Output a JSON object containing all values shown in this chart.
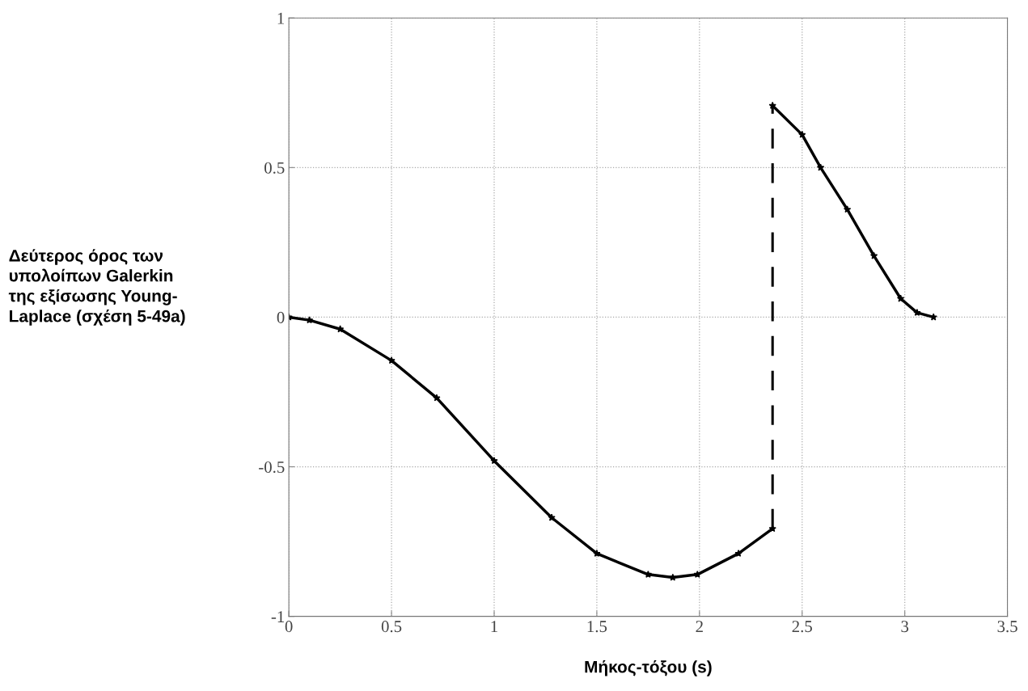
{
  "chart_data": {
    "type": "line",
    "xlabel": "Μήκος-τόξου (s)",
    "ylabel": "Δεύτερος όρος των\nυπολοίπων Galerkin\nτης εξίσωσης Young-\nLaplace (σχέση 5-49a)",
    "series": [
      {
        "color": "#000000",
        "marker": "star",
        "line_style": "solid",
        "x": [
          0,
          0.1,
          0.25,
          0.5,
          0.72,
          1.0,
          1.28,
          1.5,
          1.75,
          1.87,
          1.99,
          2.19,
          2.356
        ],
        "values": [
          0,
          -0.01,
          -0.04,
          -0.145,
          -0.27,
          -0.48,
          -0.67,
          -0.79,
          -0.86,
          -0.87,
          -0.86,
          -0.79,
          -0.707
        ]
      },
      {
        "color": "#000000",
        "line_style": "dashed",
        "x": [
          2.356,
          2.356
        ],
        "values": [
          -0.707,
          0.707
        ]
      },
      {
        "color": "#000000",
        "marker": "star",
        "line_style": "solid",
        "x": [
          2.356,
          2.5,
          2.59,
          2.72,
          2.85,
          2.98,
          3.06,
          3.14
        ],
        "values": [
          0.707,
          0.61,
          0.5,
          0.36,
          0.205,
          0.062,
          0.015,
          0
        ]
      }
    ],
    "xlim": [
      0,
      3.5
    ],
    "xticks": [
      0,
      0.5,
      1,
      1.5,
      2,
      2.5,
      3,
      3.5
    ],
    "ylim": [
      -1,
      1
    ],
    "yticks": [
      -1,
      -0.5,
      0,
      0.5,
      1
    ],
    "grid": true,
    "legend": false
  }
}
